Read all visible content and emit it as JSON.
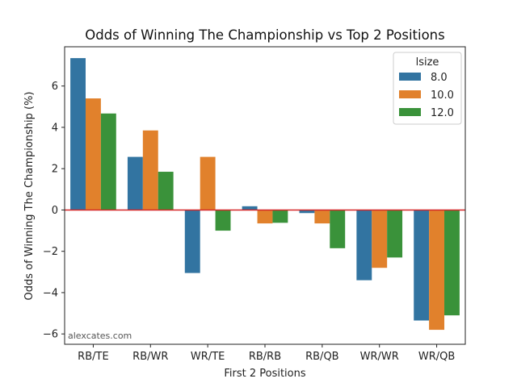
{
  "chart_data": {
    "type": "bar",
    "title": "Odds of Winning The Championship vs Top 2 Positions",
    "xlabel": "First 2 Positions",
    "ylabel": "Odds of Winning The Championship (%)",
    "categories": [
      "RB/TE",
      "RB/WR",
      "WR/TE",
      "RB/RB",
      "RB/QB",
      "WR/WR",
      "WR/QB"
    ],
    "ylim": [
      -6.5,
      7.9
    ],
    "yticks": [
      -6,
      -4,
      -2,
      0,
      2,
      4,
      6
    ],
    "legend": {
      "title": "lsize",
      "placement": "top-right"
    },
    "series": [
      {
        "name": "8.0",
        "color": "#3274a1",
        "values": [
          7.35,
          2.57,
          -3.05,
          0.18,
          -0.15,
          -3.4,
          -5.35
        ]
      },
      {
        "name": "10.0",
        "color": "#e1812c",
        "values": [
          5.4,
          3.85,
          2.57,
          -0.65,
          -0.65,
          -2.8,
          -5.8
        ]
      },
      {
        "name": "12.0",
        "color": "#3a923a",
        "values": [
          4.67,
          1.85,
          -1.0,
          -0.62,
          -1.85,
          -2.3,
          -5.1
        ]
      }
    ],
    "reference_line": {
      "value": 0,
      "color": "#d62728"
    },
    "grid": false
  },
  "watermark": "alexcates.com"
}
